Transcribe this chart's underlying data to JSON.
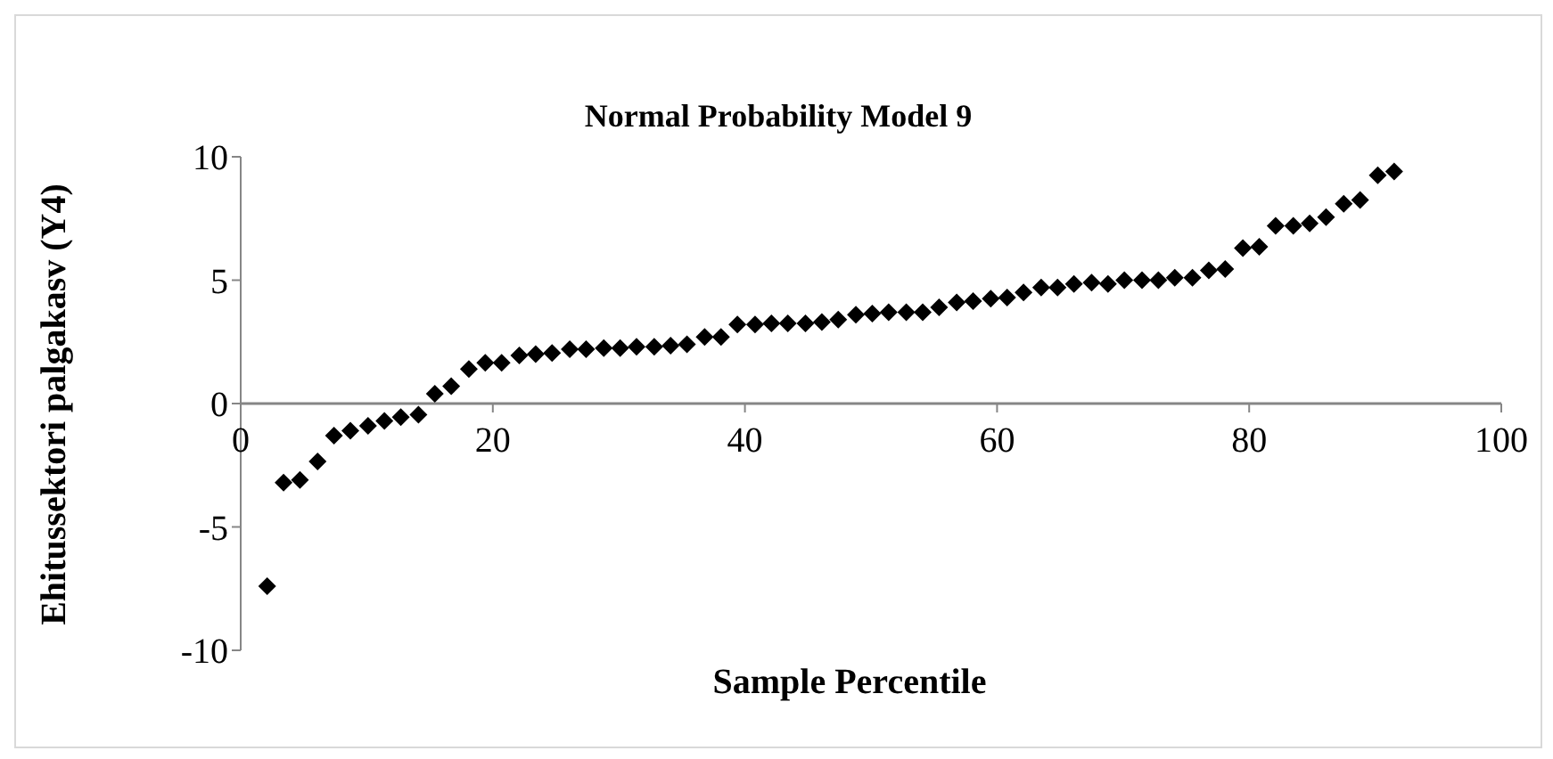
{
  "chart_data": {
    "type": "scatter",
    "title": "Normal Probability Model 9",
    "xlabel": "Sample Percentile",
    "ylabel": "Ehitussektori palgakasv (Y4)",
    "x": [
      2.1,
      3.4,
      4.7,
      6.1,
      7.4,
      8.7,
      10.1,
      11.4,
      12.7,
      14.1,
      15.4,
      16.7,
      18.1,
      19.4,
      20.7,
      22.1,
      23.4,
      24.7,
      26.1,
      27.4,
      28.8,
      30.1,
      31.4,
      32.8,
      34.1,
      35.4,
      36.8,
      38.1,
      39.4,
      40.8,
      42.1,
      43.4,
      44.8,
      46.1,
      47.4,
      48.8,
      50.1,
      51.4,
      52.8,
      54.1,
      55.4,
      56.8,
      58.1,
      59.5,
      60.8,
      62.1,
      63.5,
      64.8,
      66.1,
      67.5,
      68.8,
      70.1,
      71.5,
      72.8,
      74.1,
      75.5,
      76.8,
      78.1,
      79.5,
      80.8,
      82.1,
      83.5,
      84.8,
      86.1,
      87.5,
      88.8,
      90.2,
      91.5
    ],
    "series": [
      {
        "color": "#000000",
        "values": [
          -7.4,
          -3.2,
          -3.1,
          -2.35,
          -1.3,
          -1.1,
          -0.9,
          -0.7,
          -0.55,
          -0.45,
          0.4,
          0.7,
          1.4,
          1.65,
          1.65,
          1.95,
          2.0,
          2.05,
          2.2,
          2.2,
          2.25,
          2.25,
          2.3,
          2.3,
          2.35,
          2.4,
          2.7,
          2.7,
          3.2,
          3.2,
          3.25,
          3.25,
          3.25,
          3.3,
          3.4,
          3.6,
          3.65,
          3.7,
          3.7,
          3.7,
          3.9,
          4.1,
          4.15,
          4.25,
          4.3,
          4.5,
          4.7,
          4.7,
          4.85,
          4.9,
          4.85,
          5.0,
          5.0,
          5.0,
          5.1,
          5.1,
          5.4,
          5.45,
          6.3,
          6.35,
          7.2,
          7.2,
          7.3,
          7.55,
          8.1,
          8.25,
          9.25,
          9.4
        ]
      }
    ],
    "xlim": [
      0,
      100
    ],
    "xticks": [
      0,
      20,
      40,
      60,
      80,
      100
    ],
    "ylim": [
      -10,
      10
    ],
    "yticks": [
      -10,
      -5,
      0,
      5,
      10
    ],
    "grid": false,
    "legend": false,
    "marker": "diamond"
  }
}
